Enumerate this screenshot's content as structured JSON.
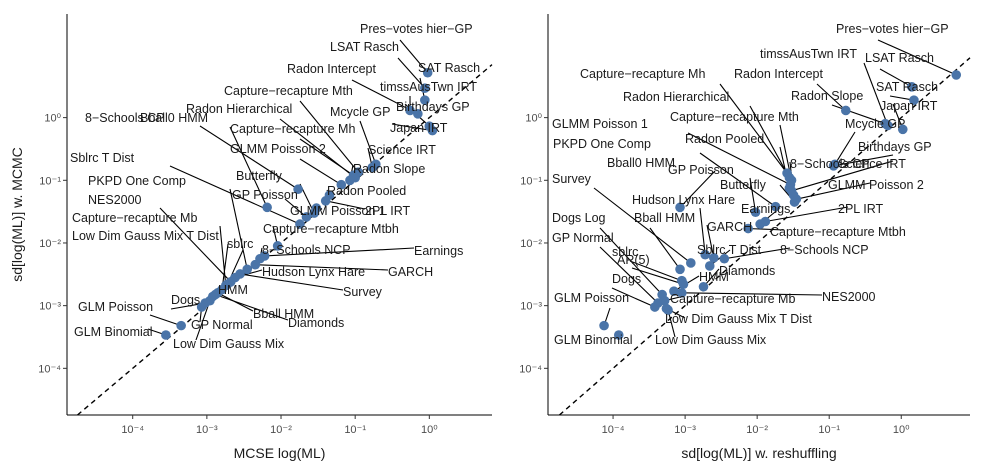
{
  "chart_data": [
    {
      "type": "scatter",
      "scale": "log10",
      "xlabel": "MCSE log(ML)",
      "ylabel": "sd[log(ML)] w. MCMC",
      "xlim": [
        1.3e-05,
        7.0
      ],
      "ylim": [
        1.8e-05,
        45.0
      ],
      "x_ticks": [
        0.0001,
        0.001,
        0.01,
        0.1,
        1
      ],
      "x_tick_labels": [
        "10⁻⁴",
        "10⁻³",
        "10⁻²",
        "10⁻¹",
        "10⁰"
      ],
      "y_ticks": [
        0.0001,
        0.001,
        0.01,
        0.1,
        1
      ],
      "y_tick_labels": [
        "10⁻⁴",
        "10⁻³",
        "10⁻²",
        "10⁻¹",
        "10⁰"
      ],
      "reference_line": "y = x",
      "grid": false,
      "point_color": "#4a74a8",
      "points": [
        {
          "label": "Pres−votes hier−GP",
          "x": 0.95,
          "y": 5.2
        },
        {
          "label": "LSAT Rasch",
          "x": 0.87,
          "y": 2.95
        },
        {
          "label": "SAT Rasch",
          "x": 0.87,
          "y": 1.9
        },
        {
          "label": "timssAusTwn IRT",
          "x": 0.55,
          "y": 1.3
        },
        {
          "label": "Radon Intercept",
          "x": 0.7,
          "y": 1.15
        },
        {
          "label": "Birthdays GP",
          "x": 1.0,
          "y": 0.73
        },
        {
          "label": "Japan IRT",
          "x": 1.1,
          "y": 0.62
        },
        {
          "label": "Mcycle GP",
          "x": 0.19,
          "y": 0.18
        },
        {
          "label": "Science IRT",
          "x": 0.17,
          "y": 0.16
        },
        {
          "label": "Capture−recapture Mth",
          "x": 0.11,
          "y": 0.135
        },
        {
          "label": "Capture−recapture Mh",
          "x": 0.095,
          "y": 0.12
        },
        {
          "label": "Radon Hierarchical",
          "x": 0.1,
          "y": 0.11
        },
        {
          "label": "Radon Slope",
          "x": 0.085,
          "y": 0.1
        },
        {
          "label": "GLMM Poisson 2",
          "x": 0.065,
          "y": 0.085
        },
        {
          "label": "Radon Pooled",
          "x": 0.045,
          "y": 0.058
        },
        {
          "label": "8−Schools CP",
          "x": 0.017,
          "y": 0.072
        },
        {
          "label": "2PL IRT",
          "x": 0.04,
          "y": 0.047
        },
        {
          "label": "GLMM Poisson 1",
          "x": 0.03,
          "y": 0.036
        },
        {
          "label": "Butterfly",
          "x": 0.028,
          "y": 0.03
        },
        {
          "label": "GP Poisson",
          "x": 0.022,
          "y": 0.026
        },
        {
          "label": "Sblrc T Dist",
          "x": 0.018,
          "y": 0.02
        },
        {
          "label": "Capture−recapture Mtbh",
          "x": 0.009,
          "y": 0.009
        },
        {
          "label": "Bball0 HMM",
          "x": 0.0065,
          "y": 0.037
        },
        {
          "label": "Earnings",
          "x": 0.006,
          "y": 0.0062
        },
        {
          "label": "8−Schools NCP",
          "x": 0.0052,
          "y": 0.0056
        },
        {
          "label": "GARCH",
          "x": 0.0045,
          "y": 0.0045
        },
        {
          "label": "PKPD One Comp",
          "x": 0.0035,
          "y": 0.0038
        },
        {
          "label": "Survey",
          "x": 0.0028,
          "y": 0.0032
        },
        {
          "label": "Hudson Lynx Hare",
          "x": 0.0024,
          "y": 0.0028
        },
        {
          "label": "NES2000",
          "x": 0.0021,
          "y": 0.0024
        },
        {
          "label": "sblrc",
          "x": 0.0019,
          "y": 0.0022
        },
        {
          "label": "Capture−recapture Mb",
          "x": 0.0018,
          "y": 0.0021
        },
        {
          "label": "Low Dim Gauss Mix T Dist",
          "x": 0.0016,
          "y": 0.0018
        },
        {
          "label": "Bball HMM",
          "x": 0.0014,
          "y": 0.0016
        },
        {
          "label": "Diamonds",
          "x": 0.0013,
          "y": 0.0015
        },
        {
          "label": "HMM",
          "x": 0.0012,
          "y": 0.0014
        },
        {
          "label": "Low Dim Gauss Mix",
          "x": 0.0011,
          "y": 0.0012
        },
        {
          "label": "Dogs",
          "x": 0.00095,
          "y": 0.0011
        },
        {
          "label": "GP Normal",
          "x": 0.00085,
          "y": 0.00095
        },
        {
          "label": "GLM Poisson",
          "x": 0.00045,
          "y": 0.00048
        },
        {
          "label": "GLM Binomial",
          "x": 0.00028,
          "y": 0.00034
        }
      ]
    },
    {
      "type": "scatter",
      "scale": "log10",
      "xlabel": "sd[log(ML)] w. reshuffling",
      "ylabel": "",
      "xlim": [
        1.25e-05,
        9.0
      ],
      "ylim": [
        1.8e-05,
        45.0
      ],
      "x_ticks": [
        0.0001,
        0.001,
        0.01,
        0.1,
        1
      ],
      "x_tick_labels": [
        "10⁻⁴",
        "10⁻³",
        "10⁻²",
        "10⁻¹",
        "10⁰"
      ],
      "y_ticks": [
        0.0001,
        0.001,
        0.01,
        0.1,
        1
      ],
      "y_tick_labels": [
        "10⁻⁴",
        "10⁻³",
        "10⁻²",
        "10⁻¹",
        "10⁰"
      ],
      "reference_line": "y = x",
      "grid": false,
      "point_color": "#4a74a8",
      "points": [
        {
          "label": "Pres−votes hier−GP",
          "x": 5.8,
          "y": 4.8
        },
        {
          "label": "LSAT Rasch",
          "x": 1.4,
          "y": 3.1
        },
        {
          "label": "SAT Rasch",
          "x": 1.5,
          "y": 1.9
        },
        {
          "label": "timssAusTwn IRT",
          "x": 0.65,
          "y": 0.75
        },
        {
          "label": "Radon Intercept",
          "x": 0.17,
          "y": 1.3
        },
        {
          "label": "Japan IRT",
          "x": 1.05,
          "y": 0.65
        },
        {
          "label": "Radon Slope",
          "x": 0.6,
          "y": 0.8
        },
        {
          "label": "Mcycle GP",
          "x": 0.12,
          "y": 0.18
        },
        {
          "label": "Birthdays GP",
          "x": 0.115,
          "y": 0.17
        },
        {
          "label": "Capture−recapture Mh",
          "x": 0.026,
          "y": 0.13
        },
        {
          "label": "Radon Hierarchical",
          "x": 0.028,
          "y": 0.11
        },
        {
          "label": "Capture−recapture Mth",
          "x": 0.03,
          "y": 0.1
        },
        {
          "label": "GLMM Poisson 1",
          "x": 0.029,
          "y": 0.085
        },
        {
          "label": "Radon Pooled",
          "x": 0.028,
          "y": 0.075
        },
        {
          "label": "Science IRT",
          "x": 0.03,
          "y": 0.068
        },
        {
          "label": "8−Schools CP",
          "x": 0.032,
          "y": 0.058
        },
        {
          "label": "GLMM Poisson 2",
          "x": 0.035,
          "y": 0.05
        },
        {
          "label": "Butterfly",
          "x": 0.033,
          "y": 0.045
        },
        {
          "label": "PKPD One Comp",
          "x": 0.018,
          "y": 0.038
        },
        {
          "label": "GP Poisson",
          "x": 0.0095,
          "y": 0.031
        },
        {
          "label": "2PL IRT",
          "x": 0.013,
          "y": 0.022
        },
        {
          "label": "Earnings",
          "x": 0.011,
          "y": 0.02
        },
        {
          "label": "Bball0 HMM",
          "x": 0.00085,
          "y": 0.037
        },
        {
          "label": "Capture−recapture Mtbh",
          "x": 0.0075,
          "y": 0.017
        },
        {
          "label": "Hudson Lynx Hare",
          "x": 0.0019,
          "y": 0.0065
        },
        {
          "label": "GARCH",
          "x": 0.0025,
          "y": 0.0058
        },
        {
          "label": "8−Schools NCP",
          "x": 0.0035,
          "y": 0.0056
        },
        {
          "label": "Survey",
          "x": 0.0012,
          "y": 0.0048
        },
        {
          "label": "Sblrc T Dist",
          "x": 0.0022,
          "y": 0.0043
        },
        {
          "label": "Bball HMM",
          "x": 0.00085,
          "y": 0.0038
        },
        {
          "label": "sblrc",
          "x": 0.0009,
          "y": 0.0025
        },
        {
          "label": "AR(5)",
          "x": 0.00095,
          "y": 0.0022
        },
        {
          "label": "Diamonds",
          "x": 0.0018,
          "y": 0.002
        },
        {
          "label": "HMM",
          "x": 0.0007,
          "y": 0.0017
        },
        {
          "label": "NES2000",
          "x": 0.0009,
          "y": 0.0016
        },
        {
          "label": "Dogs Log",
          "x": 0.00048,
          "y": 0.0015
        },
        {
          "label": "Capture−recapture Mb",
          "x": 0.00052,
          "y": 0.0012
        },
        {
          "label": "GP Normal",
          "x": 0.00042,
          "y": 0.0011
        },
        {
          "label": "Dogs",
          "x": 0.00038,
          "y": 0.00095
        },
        {
          "label": "Low Dim Gauss Mix T Dist",
          "x": 0.00055,
          "y": 0.0009
        },
        {
          "label": "Low Dim Gauss Mix",
          "x": 0.00058,
          "y": 0.00085
        },
        {
          "label": "GLM Poisson",
          "x": 7.5e-05,
          "y": 0.00048
        },
        {
          "label": "GLM Binomial",
          "x": 0.00012,
          "y": 0.00034
        }
      ]
    }
  ]
}
